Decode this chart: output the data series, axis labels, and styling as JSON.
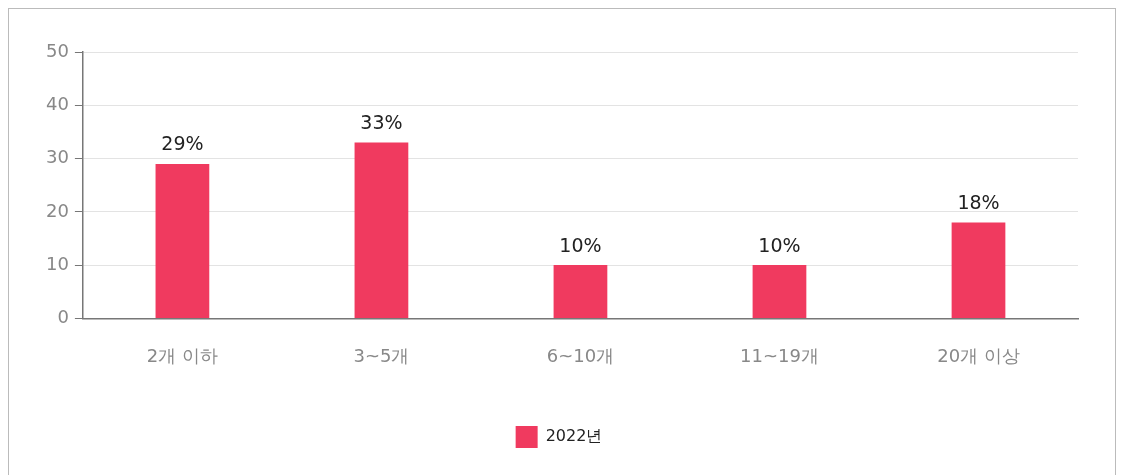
{
  "chart_data": {
    "type": "bar",
    "categories": [
      "2개 이하",
      "3~5개",
      "6~10개",
      "11~19개",
      "20개 이상"
    ],
    "series": [
      {
        "name": "2022년",
        "color": "#f03a5f",
        "values": [
          29,
          33,
          10,
          10,
          18
        ],
        "value_labels": [
          "29%",
          "33%",
          "10%",
          "10%",
          "18%"
        ]
      }
    ],
    "ylim": [
      0,
      50
    ],
    "yticks": [
      0,
      10,
      20,
      30,
      40,
      50
    ],
    "grid": "y",
    "legend": "bottom"
  }
}
